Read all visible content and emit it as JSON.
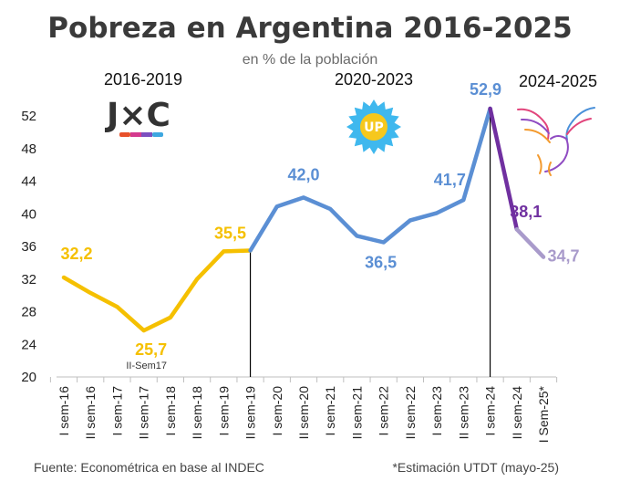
{
  "chart_data": {
    "type": "line",
    "title": "Pobreza en Argentina 2016-2025",
    "subtitle": "en % de la población",
    "categories": [
      "I sem-16",
      "II sem-16",
      "I sem-17",
      "II sem-17",
      "I sem-18",
      "II sem-18",
      "I sem-19",
      "II sem-19",
      "I sem-20",
      "II sem-20",
      "I sem-21",
      "II sem-21",
      "I sem-22",
      "II sem-22",
      "I sem-23",
      "II sem-23",
      "I sem-24",
      "II sem-24",
      "I Sem-25*"
    ],
    "values": [
      32.2,
      30.3,
      28.6,
      25.7,
      27.3,
      32.0,
      35.4,
      35.5,
      40.9,
      42.0,
      40.6,
      37.3,
      36.5,
      39.2,
      40.1,
      41.7,
      52.9,
      38.1,
      34.7
    ],
    "ylim": [
      20,
      54
    ],
    "yticks": [
      20,
      24,
      28,
      32,
      36,
      40,
      44,
      48,
      52
    ],
    "grid": false,
    "series": [
      {
        "name": "",
        "from": 0,
        "to": 7,
        "color": "#F5C000"
      },
      {
        "name": "",
        "from": 7,
        "to": 16,
        "color": "#5B8FD4"
      },
      {
        "name": "",
        "from": 16,
        "to": 17,
        "color": "#7030A0"
      },
      {
        "name": "",
        "from": 17,
        "to": 18,
        "color": "#A99BCB"
      }
    ],
    "data_labels": [
      {
        "index": 0,
        "text": "32,2",
        "color": "#F5C000"
      },
      {
        "index": 3,
        "text": "25,7",
        "color": "#F5C000"
      },
      {
        "index": 7,
        "text": "35,5",
        "color": "#F5C000"
      },
      {
        "index": 9,
        "text": "42,0",
        "color": "#5B8FD4"
      },
      {
        "index": 12,
        "text": "36,5",
        "color": "#5B8FD4"
      },
      {
        "index": 15,
        "text": "41,7",
        "color": "#5B8FD4"
      },
      {
        "index": 16,
        "text": "52,9",
        "color": "#5B8FD4"
      },
      {
        "index": 17,
        "text": "38,1",
        "color": "#7030A0"
      },
      {
        "index": 18,
        "text": "34,7",
        "color": "#A99BCB"
      }
    ],
    "period_labels": [
      "2016-2019",
      "2020-2023",
      "2024-2025"
    ],
    "annotation": "II-Sem17",
    "dividers_after": [
      7,
      16
    ]
  },
  "logos": {
    "jxc_text": "J×C",
    "jxc_stripe_colors": [
      "#E8512A",
      "#D43A8E",
      "#7C4FBF",
      "#3DA7E0"
    ],
    "up_text": "UP",
    "up_colors": {
      "badge": "#3FB8EE",
      "center": "#F6C81D",
      "text": "#FFFFFF"
    },
    "eagle_colors": [
      "#E2457C",
      "#8F4BC2",
      "#F39A2E",
      "#4A90D9"
    ]
  },
  "footer": {
    "source": "Fuente: Econométrica en base al INDEC",
    "note": "*Estimación UTDT (mayo-25)"
  }
}
